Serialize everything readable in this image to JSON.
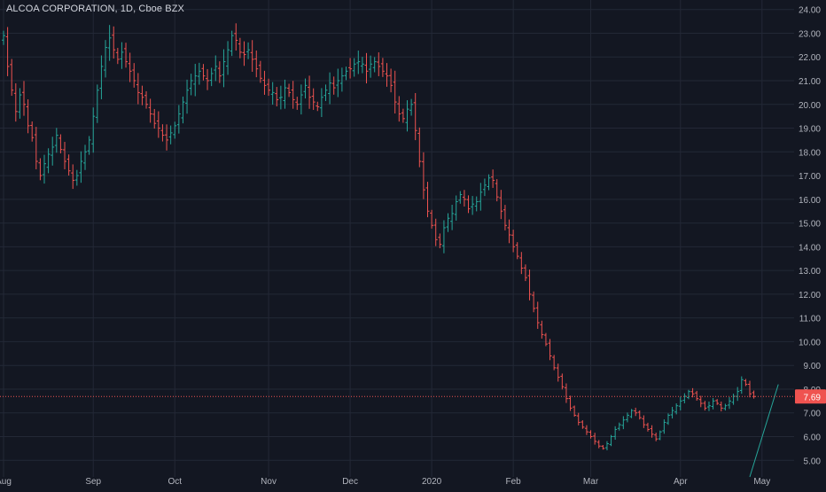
{
  "header": {
    "title": "ALCOA CORPORATION, 1D, Cboe BZX"
  },
  "colors": {
    "background": "#131722",
    "grid": "#232836",
    "text": "#b2b5be",
    "up": "#26a69a",
    "down": "#ef5350",
    "price_line": "#ef5350",
    "trendline": "#26a69a"
  },
  "chart_data": {
    "type": "ohlc",
    "title": "ALCOA CORPORATION, 1D, Cboe BZX",
    "ylim": [
      4.3,
      24.4
    ],
    "y_ticks": [
      "24.00",
      "23.00",
      "22.00",
      "21.00",
      "20.00",
      "19.00",
      "18.00",
      "17.00",
      "16.00",
      "15.00",
      "14.00",
      "13.00",
      "12.00",
      "11.00",
      "10.00",
      "9.00",
      "8.00",
      "7.00",
      "6.00",
      "5.00"
    ],
    "x_ticks": [
      {
        "label": "Aug",
        "bar": 0
      },
      {
        "label": "Sep",
        "bar": 22
      },
      {
        "label": "Oct",
        "bar": 42
      },
      {
        "label": "Nov",
        "bar": 65
      },
      {
        "label": "Dec",
        "bar": 85
      },
      {
        "label": "2020",
        "bar": 105
      },
      {
        "label": "Feb",
        "bar": 125
      },
      {
        "label": "Mar",
        "bar": 144
      },
      {
        "label": "Apr",
        "bar": 166
      },
      {
        "label": "May",
        "bar": 186
      }
    ],
    "bars_total": 193,
    "grid": true,
    "last_price": 7.69,
    "last_price_label": "7.69",
    "closes": [
      22.9,
      21.6,
      20.6,
      19.7,
      20.4,
      20.0,
      19.1,
      18.6,
      17.6,
      17.0,
      17.5,
      17.9,
      18.2,
      18.7,
      18.1,
      17.6,
      17.2,
      16.8,
      17.0,
      17.6,
      18.0,
      18.5,
      19.5,
      20.6,
      21.6,
      22.4,
      22.8,
      22.3,
      21.9,
      22.2,
      21.8,
      21.4,
      21.0,
      20.5,
      20.3,
      20.0,
      19.6,
      19.2,
      19.0,
      18.7,
      18.5,
      18.8,
      19.1,
      19.6,
      20.1,
      20.6,
      21.0,
      21.2,
      21.4,
      21.2,
      21.0,
      21.3,
      21.6,
      21.2,
      21.8,
      22.3,
      22.9,
      22.7,
      22.2,
      22.1,
      22.3,
      21.9,
      21.5,
      21.1,
      20.8,
      20.6,
      20.5,
      20.2,
      20.3,
      20.7,
      20.5,
      20.2,
      20.0,
      20.4,
      20.8,
      20.3,
      20.1,
      19.9,
      20.3,
      20.6,
      20.9,
      20.7,
      21.0,
      21.2,
      21.4,
      21.5,
      21.7,
      21.8,
      21.7,
      21.4,
      21.7,
      21.8,
      21.6,
      21.4,
      21.2,
      20.8,
      20.1,
      19.6,
      19.4,
      19.8,
      20.0,
      18.9,
      17.6,
      16.4,
      15.5,
      14.9,
      14.3,
      14.1,
      14.8,
      15.2,
      15.4,
      15.9,
      16.2,
      16.0,
      15.6,
      15.8,
      15.9,
      16.3,
      16.6,
      16.9,
      16.8,
      16.1,
      15.5,
      14.9,
      14.5,
      14.0,
      13.6,
      13.1,
      12.7,
      12.0,
      11.4,
      10.8,
      10.3,
      9.9,
      9.4,
      8.9,
      8.5,
      8.1,
      7.6,
      7.2,
      6.9,
      6.6,
      6.4,
      6.2,
      6.0,
      5.8,
      5.6,
      5.5,
      5.7,
      6.0,
      6.3,
      6.5,
      6.7,
      6.9,
      7.1,
      7.0,
      6.8,
      6.5,
      6.3,
      6.1,
      5.9,
      6.2,
      6.6,
      6.9,
      7.1,
      7.3,
      7.5,
      7.7,
      7.9,
      7.8,
      7.6,
      7.4,
      7.2,
      7.3,
      7.5,
      7.4,
      7.2,
      7.3,
      7.5,
      7.7,
      7.9,
      8.4,
      8.2,
      7.8,
      7.69
    ],
    "trendline": [
      {
        "bar": 183,
        "price": 4.3
      },
      {
        "bar": 190,
        "price": 8.2
      }
    ]
  }
}
